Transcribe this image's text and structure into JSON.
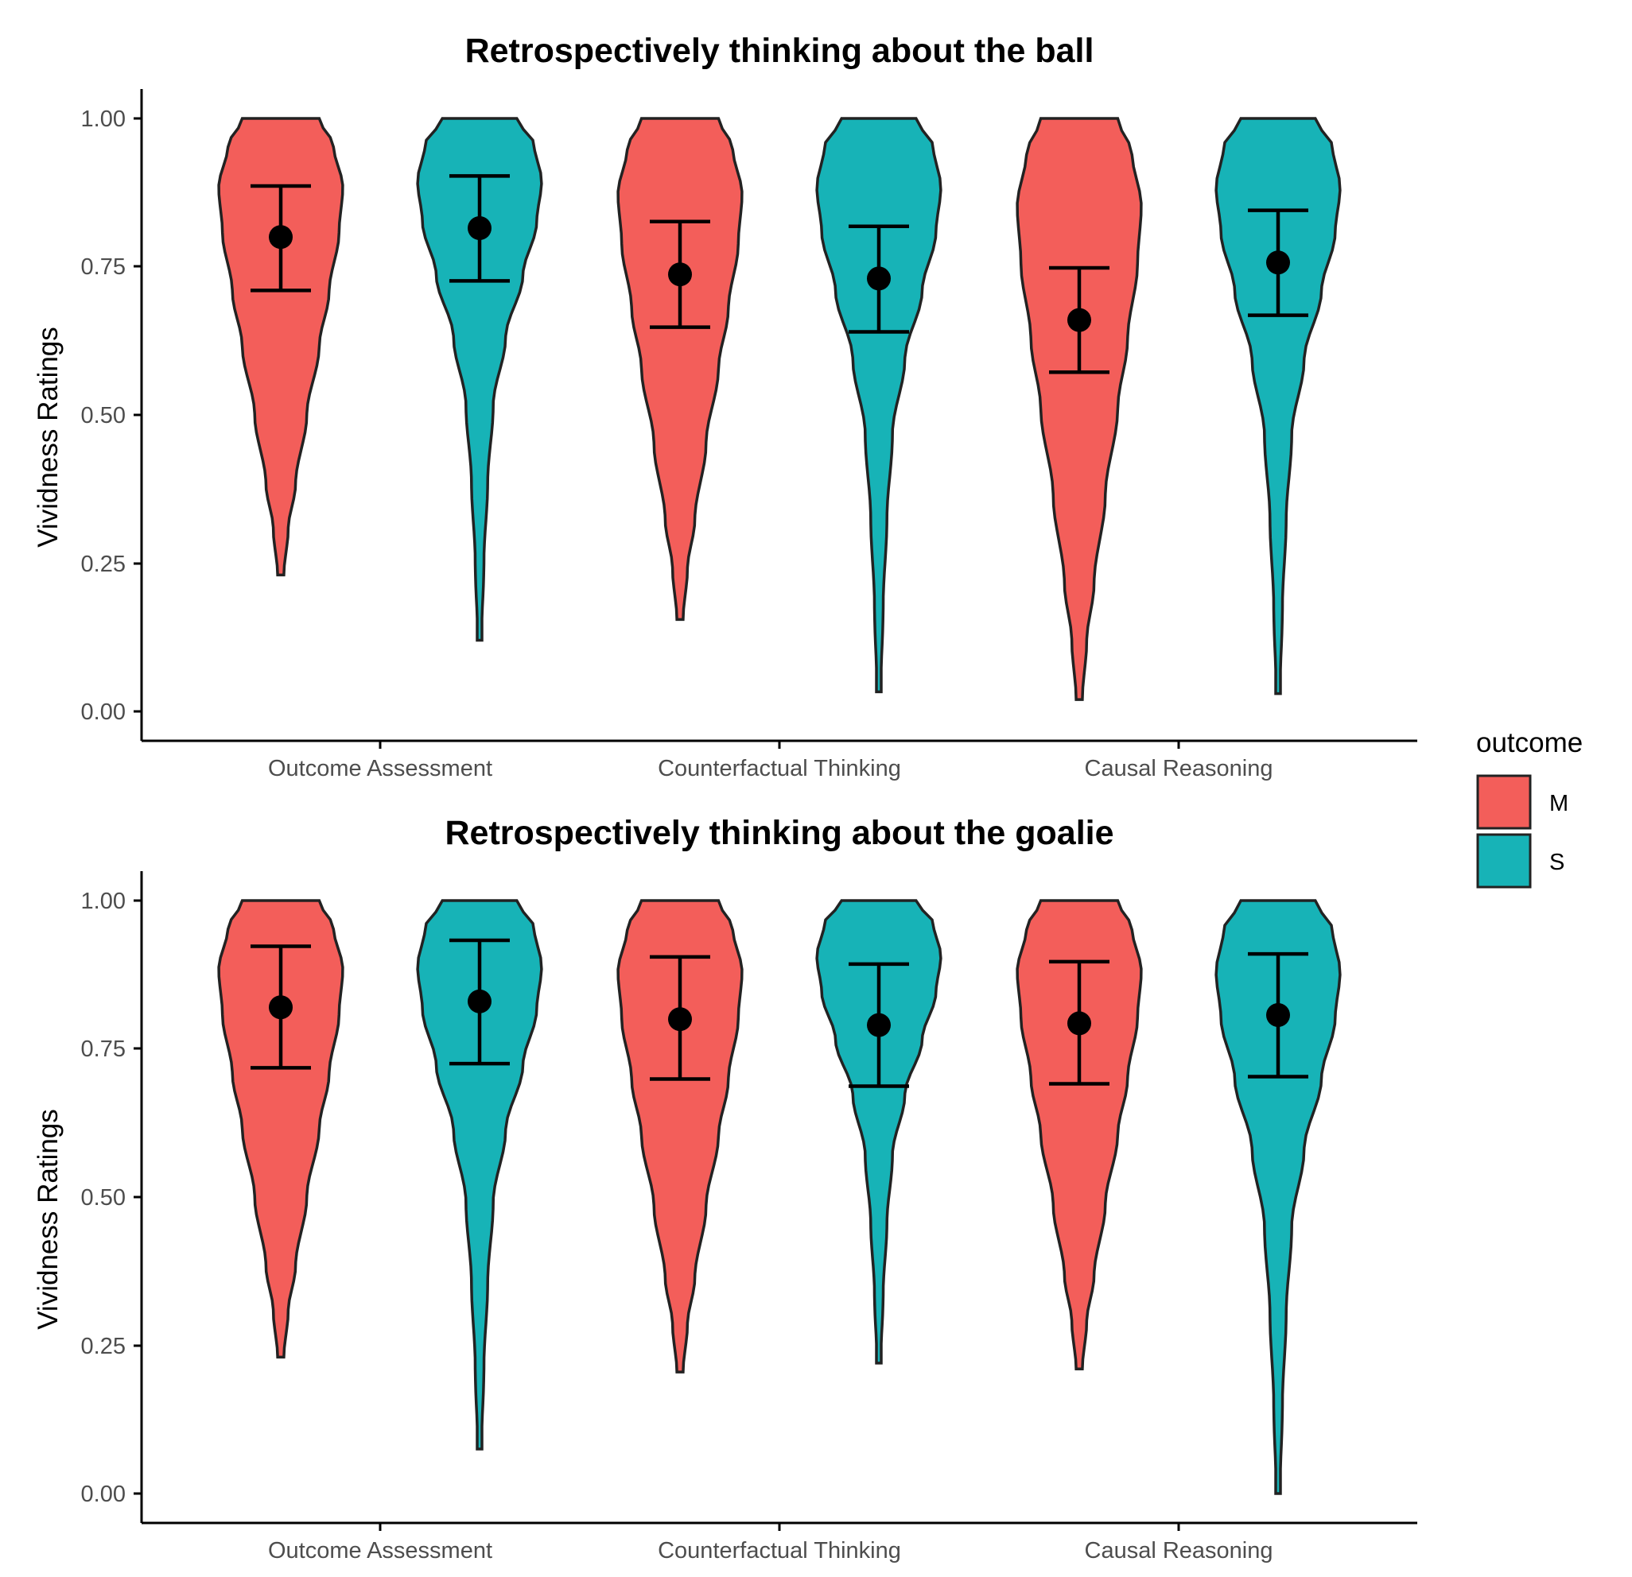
{
  "colors": {
    "M": "#F8766D",
    "S": "#00BFC4",
    "M_fill": "#f35e5a",
    "S_fill": "#17b3b7",
    "outline": "#222222"
  },
  "legend": {
    "title": "outcome",
    "items": [
      {
        "key": "M",
        "label": "M",
        "color": "#f35e5a"
      },
      {
        "key": "S",
        "label": "S",
        "color": "#17b3b7"
      }
    ]
  },
  "chart_data": [
    {
      "type": "violin",
      "title": "Retrospectively thinking about the ball",
      "xlabel": "",
      "ylabel": "Vividness Ratings",
      "ylim": [
        0,
        1
      ],
      "yticks": [
        "0.00",
        "0.25",
        "0.50",
        "0.75",
        "1.00"
      ],
      "categories": [
        "Outcome Assessment",
        "Counterfactual Thinking",
        "Causal Reasoning"
      ],
      "series": [
        {
          "name": "M",
          "min": [
            0.23,
            0.155,
            0.02
          ],
          "max": [
            1.0,
            1.0,
            1.0
          ],
          "mean": [
            0.8,
            0.737,
            0.66
          ],
          "ci_low": [
            0.71,
            0.648,
            0.572
          ],
          "ci_high": [
            0.886,
            0.826,
            0.748
          ]
        },
        {
          "name": "S",
          "min": [
            0.12,
            0.033,
            0.03
          ],
          "max": [
            1.0,
            1.0,
            1.0
          ],
          "mean": [
            0.815,
            0.73,
            0.757
          ],
          "ci_low": [
            0.726,
            0.64,
            0.668
          ],
          "ci_high": [
            0.903,
            0.818,
            0.845
          ]
        }
      ]
    },
    {
      "type": "violin",
      "title": "Retrospectively thinking about the goalie",
      "xlabel": "",
      "ylabel": "Vividness Ratings",
      "ylim": [
        0,
        1
      ],
      "yticks": [
        "0.00",
        "0.25",
        "0.50",
        "0.75",
        "1.00"
      ],
      "categories": [
        "Outcome Assessment",
        "Counterfactual Thinking",
        "Causal Reasoning"
      ],
      "series": [
        {
          "name": "M",
          "min": [
            0.23,
            0.205,
            0.21
          ],
          "max": [
            1.0,
            1.0,
            1.0
          ],
          "mean": [
            0.82,
            0.8,
            0.793
          ],
          "ci_low": [
            0.718,
            0.699,
            0.691
          ],
          "ci_high": [
            0.923,
            0.905,
            0.897
          ]
        },
        {
          "name": "S",
          "min": [
            0.075,
            0.22,
            0.0
          ],
          "max": [
            1.0,
            1.0,
            1.0
          ],
          "mean": [
            0.83,
            0.79,
            0.807
          ],
          "ci_low": [
            0.725,
            0.687,
            0.703
          ],
          "ci_high": [
            0.933,
            0.893,
            0.91
          ]
        }
      ]
    }
  ]
}
